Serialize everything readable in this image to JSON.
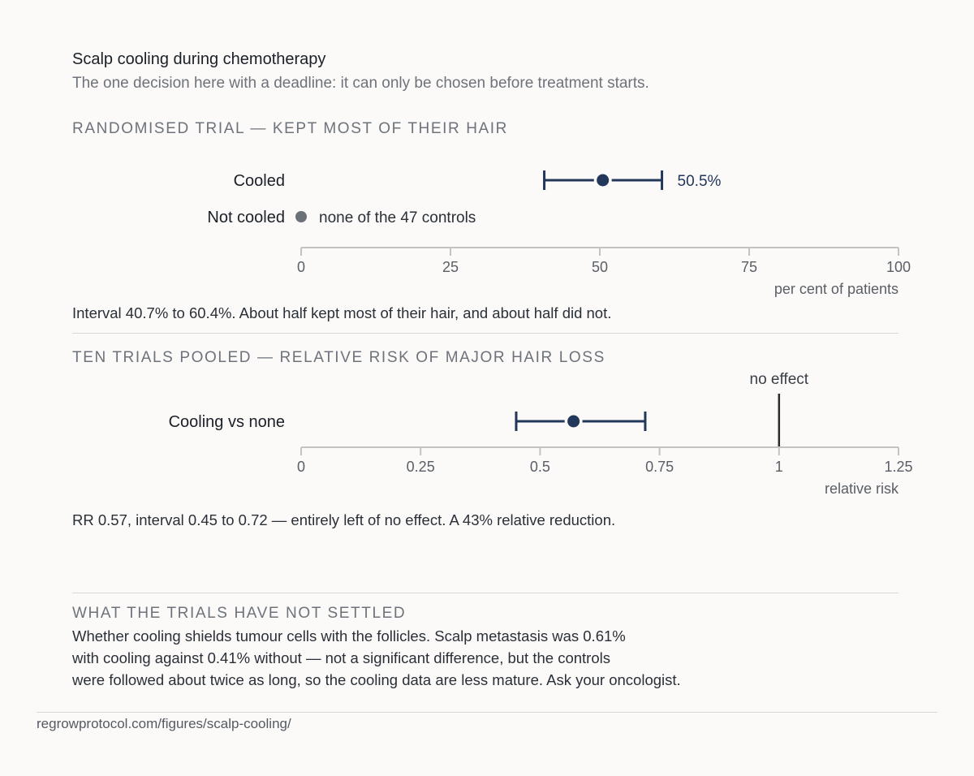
{
  "header": {
    "title": "Scalp cooling during chemotherapy",
    "subtitle": "The one decision here with a deadline: it can only be chosen before treatment starts."
  },
  "colors": {
    "estimate": "#22375a",
    "control": "#6c7078",
    "axis": "#c4c3bf",
    "no_effect_line": "#2b2b2b"
  },
  "chart_data": [
    {
      "type": "scatter",
      "section_title": "RANDOMISED TRIAL — KEPT MOST OF THEIR HAIR",
      "xlabel": "per cent of patients",
      "xlim": [
        0,
        100
      ],
      "x_ticks": [
        0,
        25,
        50,
        75,
        100
      ],
      "rows": [
        {
          "label": "Cooled",
          "estimate": 50.5,
          "ci": [
            40.7,
            60.4
          ],
          "value_label": "50.5%"
        },
        {
          "label": "Not cooled",
          "estimate": 0,
          "value_label": "none of the 47 controls"
        }
      ],
      "note": "Interval 40.7% to 60.4%. About half kept most of their hair, and about half did not."
    },
    {
      "type": "scatter",
      "section_title": "TEN TRIALS POOLED — RELATIVE RISK OF MAJOR HAIR LOSS",
      "xlabel": "relative risk",
      "xlim": [
        0,
        1.25
      ],
      "x_ticks": [
        0,
        0.25,
        0.5,
        0.75,
        1,
        1.25
      ],
      "reference_line": {
        "x": 1,
        "label": "no effect"
      },
      "rows": [
        {
          "label": "Cooling vs none",
          "estimate": 0.57,
          "ci": [
            0.45,
            0.72
          ]
        }
      ],
      "note": "RR 0.57, interval 0.45 to 0.72 — entirely left of no effect. A 43% relative reduction."
    }
  ],
  "unsettled": {
    "title": "WHAT THE TRIALS HAVE NOT SETTLED",
    "lines": [
      "Whether cooling shields tumour cells with the follicles. Scalp metastasis was 0.61%",
      "with cooling against 0.41% without — not a significant difference, but the controls",
      "were followed about twice as long, so the cooling data are less mature. Ask your oncologist."
    ]
  },
  "footer": {
    "url": "regrowprotocol.com/figures/scalp-cooling/"
  }
}
